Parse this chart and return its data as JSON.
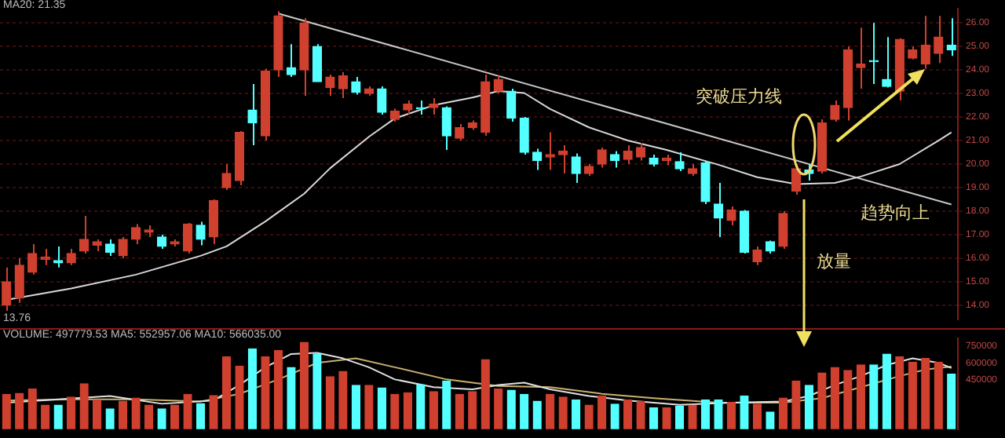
{
  "chart_data": [
    {
      "type": "candlestick",
      "title": "MA20: 21.35",
      "categories": [
        null,
        null,
        null,
        null,
        null,
        null,
        null,
        null,
        null,
        null,
        null,
        null,
        null,
        null,
        null,
        null,
        null,
        null,
        null,
        null,
        null,
        null,
        null,
        null,
        null,
        null,
        null,
        null,
        null,
        null,
        null,
        null,
        null,
        null,
        null,
        null,
        null,
        null,
        null,
        null,
        null,
        null,
        null,
        null,
        null,
        null,
        null,
        null,
        null,
        null,
        null,
        null,
        null,
        null,
        null,
        null,
        null,
        null,
        null,
        null,
        null,
        null,
        null,
        null,
        null,
        null,
        null,
        null,
        null,
        null,
        null,
        null,
        null,
        null
      ],
      "ohlc": [
        [
          14.0,
          15.6,
          13.76,
          15.0
        ],
        [
          14.3,
          16.0,
          14.1,
          15.7
        ],
        [
          15.4,
          16.6,
          15.3,
          16.2
        ],
        [
          15.95,
          16.4,
          15.7,
          16.05
        ],
        [
          15.9,
          16.5,
          15.6,
          15.8
        ],
        [
          15.8,
          16.4,
          15.7,
          16.2
        ],
        [
          16.3,
          17.8,
          16.2,
          16.8
        ],
        [
          16.55,
          16.8,
          16.3,
          16.7
        ],
        [
          16.6,
          16.8,
          16.1,
          16.25
        ],
        [
          16.1,
          16.9,
          16.0,
          16.8
        ],
        [
          16.8,
          17.45,
          16.6,
          17.3
        ],
        [
          17.1,
          17.4,
          16.9,
          17.2
        ],
        [
          16.9,
          17.0,
          16.4,
          16.5
        ],
        [
          16.6,
          16.8,
          16.5,
          16.7
        ],
        [
          16.3,
          17.5,
          16.2,
          17.45
        ],
        [
          17.4,
          17.55,
          16.55,
          16.8
        ],
        [
          16.9,
          18.5,
          16.6,
          18.45
        ],
        [
          19.0,
          20.0,
          18.9,
          19.6
        ],
        [
          19.3,
          21.4,
          19.1,
          21.35
        ],
        [
          22.3,
          23.4,
          20.8,
          21.75
        ],
        [
          21.2,
          24.05,
          21.0,
          23.95
        ],
        [
          24.0,
          26.5,
          23.7,
          26.3
        ],
        [
          24.1,
          25.1,
          23.7,
          23.8
        ],
        [
          24.0,
          26.2,
          22.9,
          26.0
        ],
        [
          25.0,
          25.1,
          23.5,
          23.5
        ],
        [
          23.25,
          23.8,
          22.9,
          23.7
        ],
        [
          23.2,
          23.9,
          22.8,
          23.75
        ],
        [
          23.5,
          23.7,
          22.95,
          23.05
        ],
        [
          23.0,
          23.3,
          22.9,
          23.2
        ],
        [
          23.2,
          23.3,
          22.1,
          22.2
        ],
        [
          21.9,
          22.35,
          21.8,
          22.25
        ],
        [
          22.3,
          22.7,
          22.1,
          22.55
        ],
        [
          22.4,
          22.7,
          22.1,
          22.35
        ],
        [
          22.4,
          22.8,
          22.1,
          22.55
        ],
        [
          22.4,
          22.45,
          20.6,
          21.2
        ],
        [
          21.1,
          21.7,
          21.0,
          21.55
        ],
        [
          21.55,
          21.85,
          21.45,
          21.75
        ],
        [
          21.35,
          23.8,
          21.2,
          23.5
        ],
        [
          23.1,
          23.75,
          23.0,
          23.6
        ],
        [
          23.1,
          23.2,
          21.8,
          21.95
        ],
        [
          21.95,
          22.0,
          20.4,
          20.5
        ],
        [
          20.5,
          20.65,
          19.75,
          20.15
        ],
        [
          20.3,
          21.35,
          19.75,
          20.4
        ],
        [
          20.4,
          20.8,
          19.6,
          20.55
        ],
        [
          20.3,
          20.45,
          19.2,
          19.6
        ],
        [
          19.6,
          20.0,
          19.5,
          19.9
        ],
        [
          20.0,
          20.7,
          19.85,
          20.6
        ],
        [
          20.4,
          20.55,
          19.85,
          20.15
        ],
        [
          20.2,
          20.8,
          20.0,
          20.55
        ],
        [
          20.3,
          20.9,
          20.15,
          20.7
        ],
        [
          20.25,
          20.4,
          19.9,
          20.0
        ],
        [
          20.15,
          20.4,
          19.95,
          20.25
        ],
        [
          20.1,
          20.5,
          19.7,
          19.8
        ],
        [
          19.6,
          20.0,
          19.5,
          19.8
        ],
        [
          20.05,
          20.1,
          18.3,
          18.4
        ],
        [
          18.3,
          19.2,
          16.9,
          17.7
        ],
        [
          17.6,
          18.2,
          17.4,
          18.05
        ],
        [
          18.0,
          18.05,
          16.2,
          16.25
        ],
        [
          15.85,
          16.5,
          15.7,
          16.35
        ],
        [
          16.7,
          16.75,
          16.2,
          16.3
        ],
        [
          16.5,
          18.0,
          16.4,
          17.9
        ],
        [
          18.85,
          20.0,
          18.7,
          19.8
        ],
        [
          19.75,
          20.0,
          19.3,
          19.6
        ],
        [
          19.7,
          21.9,
          19.6,
          21.75
        ],
        [
          21.9,
          22.7,
          21.8,
          22.5
        ],
        [
          22.4,
          25.0,
          21.85,
          24.85
        ],
        [
          24.1,
          25.8,
          23.2,
          24.25
        ],
        [
          24.4,
          26.0,
          23.4,
          24.35
        ],
        [
          23.6,
          25.4,
          23.25,
          23.3
        ],
        [
          23.1,
          25.35,
          22.7,
          25.3
        ],
        [
          24.5,
          25.0,
          24.45,
          24.85
        ],
        [
          24.25,
          26.3,
          24.05,
          25.05
        ],
        [
          24.7,
          26.3,
          24.3,
          25.4
        ],
        [
          25.05,
          26.2,
          24.6,
          24.85
        ]
      ],
      "colors": [
        "#d0402f",
        "#d0402f",
        "#d0402f",
        "#d0402f",
        "#54ffff",
        "#d0402f",
        "#d0402f",
        "#d0402f",
        "#54ffff",
        "#d0402f",
        "#d0402f",
        "#d0402f",
        "#54ffff",
        "#d0402f",
        "#d0402f",
        "#54ffff",
        "#d0402f",
        "#d0402f",
        "#d0402f",
        "#54ffff",
        "#d0402f",
        "#d0402f",
        "#54ffff",
        "#d0402f",
        "#54ffff",
        "#d0402f",
        "#d0402f",
        "#54ffff",
        "#d0402f",
        "#54ffff",
        "#d0402f",
        "#d0402f",
        "#54ffff",
        "#d0402f",
        "#54ffff",
        "#d0402f",
        "#d0402f",
        "#d0402f",
        "#d0402f",
        "#54ffff",
        "#54ffff",
        "#54ffff",
        "#d0402f",
        "#d0402f",
        "#54ffff",
        "#d0402f",
        "#d0402f",
        "#54ffff",
        "#d0402f",
        "#d0402f",
        "#54ffff",
        "#d0402f",
        "#54ffff",
        "#d0402f",
        "#54ffff",
        "#54ffff",
        "#d0402f",
        "#54ffff",
        "#d0402f",
        "#54ffff",
        "#d0402f",
        "#d0402f",
        "#54ffff",
        "#d0402f",
        "#d0402f",
        "#d0402f",
        "#d0402f",
        "#54ffff",
        "#54ffff",
        "#d0402f",
        "#d0402f",
        "#d0402f",
        "#d0402f",
        "#54ffff"
      ],
      "series": [
        {
          "type": "line",
          "color": "#d8d8d8",
          "values": [
            14.23,
            null,
            null,
            null,
            null,
            14.71,
            null,
            null,
            null,
            null,
            15.3,
            null,
            null,
            null,
            null,
            16.1,
            null,
            16.5,
            null,
            null,
            17.56,
            null,
            null,
            18.74,
            null,
            19.82,
            null,
            null,
            21.16,
            null,
            21.94,
            null,
            null,
            22.5,
            null,
            null,
            22.83,
            null,
            23.1,
            null,
            23.02,
            null,
            22.34,
            null,
            null,
            21.56,
            null,
            null,
            21.0,
            null,
            null,
            20.6,
            null,
            null,
            null,
            19.97,
            null,
            null,
            19.44,
            null,
            null,
            19.15,
            null,
            null,
            19.2,
            null,
            19.47,
            null,
            null,
            20.0,
            null,
            null,
            21.0,
            21.35
          ]
        },
        {
          "type": "line",
          "color": "#c8c8c8",
          "values": [
            null,
            null,
            null,
            null,
            null,
            null,
            null,
            null,
            null,
            null,
            null,
            null,
            null,
            null,
            null,
            null,
            null,
            null,
            null,
            null,
            null,
            26.4,
            null,
            null,
            null,
            null,
            null,
            null,
            null,
            null,
            null,
            null,
            null,
            null,
            null,
            null,
            null,
            null,
            null,
            null,
            null,
            null,
            null,
            null,
            null,
            null,
            null,
            null,
            null,
            null,
            null,
            null,
            null,
            null,
            null,
            null,
            null,
            null,
            null,
            null,
            null,
            null,
            null,
            null,
            null,
            null,
            null,
            null,
            null,
            null,
            null,
            null,
            null,
            18.28
          ]
        }
      ],
      "ylim": [
        13.4,
        26.6
      ],
      "yticks": [
        {
          "value": 14,
          "label": "14.00"
        },
        {
          "value": 15,
          "label": "15.00"
        },
        {
          "value": 16,
          "label": "16.00"
        },
        {
          "value": 17,
          "label": "17.00"
        },
        {
          "value": 18,
          "label": "18.00"
        },
        {
          "value": 19,
          "label": "19.00"
        },
        {
          "value": 20,
          "label": "20.00"
        },
        {
          "value": 21,
          "label": "21.00"
        },
        {
          "value": 22,
          "label": "22.00"
        },
        {
          "value": 23,
          "label": "23.00"
        },
        {
          "value": 24,
          "label": "24.00"
        },
        {
          "value": 25,
          "label": "25.00"
        },
        {
          "value": 26,
          "label": "26.00"
        }
      ],
      "grid": "y",
      "tick_labels": "y",
      "annotations": [
        "突破压力线",
        "趋势向上",
        "放量",
        {
          "text": "13.76",
          "y": 13.76
        }
      ]
    },
    {
      "type": "bar",
      "title": "VOLUME: 497779.53  MA5: 552957.06  MA10: 566035.00",
      "categories": [
        null,
        null,
        null,
        null,
        null,
        null,
        null,
        null,
        null,
        null,
        null,
        null,
        null,
        null,
        null,
        null,
        null,
        null,
        null,
        null,
        null,
        null,
        null,
        null,
        null,
        null,
        null,
        null,
        null,
        null,
        null,
        null,
        null,
        null,
        null,
        null,
        null,
        null,
        null,
        null,
        null,
        null,
        null,
        null,
        null,
        null,
        null,
        null,
        null,
        null,
        null,
        null,
        null,
        null,
        null,
        null,
        null,
        null,
        null,
        null,
        null,
        null,
        null,
        null,
        null,
        null,
        null,
        null,
        null,
        null,
        null,
        null,
        null,
        null
      ],
      "values": [
        315000,
        324000,
        363000,
        218000,
        218000,
        290000,
        411000,
        266000,
        184000,
        252000,
        281000,
        218000,
        184000,
        218000,
        315000,
        232000,
        305000,
        653000,
        571000,
        726000,
        653000,
        711000,
        557000,
        784000,
        678000,
        474000,
        523000,
        397000,
        397000,
        373000,
        315000,
        329000,
        402000,
        339000,
        436000,
        315000,
        339000,
        629000,
        363000,
        353000,
        315000,
        252000,
        315000,
        290000,
        266000,
        218000,
        300000,
        227000,
        266000,
        252000,
        194000,
        194000,
        208000,
        218000,
        266000,
        266000,
        242000,
        300000,
        227000,
        155000,
        281000,
        436000,
        397000,
        508000,
        557000,
        532000,
        581000,
        581000,
        678000,
        653000,
        605000,
        639000,
        605000,
        497779.53
      ],
      "colors": [
        "#d0402f",
        "#d0402f",
        "#d0402f",
        "#d0402f",
        "#54ffff",
        "#d0402f",
        "#d0402f",
        "#d0402f",
        "#54ffff",
        "#d0402f",
        "#d0402f",
        "#d0402f",
        "#54ffff",
        "#d0402f",
        "#d0402f",
        "#54ffff",
        "#d0402f",
        "#d0402f",
        "#d0402f",
        "#54ffff",
        "#d0402f",
        "#d0402f",
        "#54ffff",
        "#d0402f",
        "#54ffff",
        "#d0402f",
        "#d0402f",
        "#54ffff",
        "#d0402f",
        "#54ffff",
        "#d0402f",
        "#d0402f",
        "#54ffff",
        "#d0402f",
        "#54ffff",
        "#d0402f",
        "#d0402f",
        "#d0402f",
        "#d0402f",
        "#54ffff",
        "#54ffff",
        "#54ffff",
        "#d0402f",
        "#d0402f",
        "#54ffff",
        "#d0402f",
        "#d0402f",
        "#54ffff",
        "#d0402f",
        "#d0402f",
        "#54ffff",
        "#d0402f",
        "#54ffff",
        "#d0402f",
        "#54ffff",
        "#54ffff",
        "#d0402f",
        "#54ffff",
        "#d0402f",
        "#54ffff",
        "#d0402f",
        "#d0402f",
        "#54ffff",
        "#d0402f",
        "#d0402f",
        "#d0402f",
        "#d0402f",
        "#54ffff",
        "#54ffff",
        "#d0402f",
        "#d0402f",
        "#d0402f",
        "#d0402f",
        "#54ffff"
      ],
      "series": [
        {
          "type": "line",
          "color": "#e0e0e0",
          "values": [
            240000,
            null,
            null,
            null,
            270000,
            null,
            null,
            null,
            300000,
            null,
            null,
            null,
            230000,
            null,
            null,
            null,
            260000,
            null,
            400000,
            null,
            560000,
            null,
            680000,
            null,
            690000,
            null,
            640000,
            null,
            560000,
            null,
            450000,
            null,
            null,
            380000,
            null,
            null,
            360000,
            null,
            400000,
            null,
            420000,
            null,
            360000,
            null,
            null,
            300000,
            null,
            null,
            260000,
            null,
            null,
            null,
            220000,
            null,
            null,
            null,
            240000,
            null,
            null,
            null,
            250000,
            null,
            300000,
            null,
            400000,
            null,
            480000,
            null,
            580000,
            null,
            640000,
            null,
            600000,
            552957.06
          ]
        },
        {
          "type": "line",
          "color": "#c8b070",
          "values": [
            260000,
            null,
            null,
            null,
            null,
            270000,
            null,
            null,
            null,
            null,
            270000,
            null,
            null,
            null,
            null,
            250000,
            null,
            null,
            320000,
            null,
            null,
            450000,
            null,
            null,
            600000,
            null,
            null,
            640000,
            null,
            null,
            560000,
            null,
            null,
            null,
            450000,
            null,
            null,
            null,
            390000,
            null,
            null,
            null,
            380000,
            null,
            null,
            null,
            320000,
            null,
            null,
            null,
            280000,
            null,
            null,
            null,
            null,
            240000,
            null,
            null,
            null,
            null,
            240000,
            null,
            null,
            280000,
            null,
            null,
            380000,
            null,
            null,
            480000,
            null,
            540000,
            null,
            566035.0
          ]
        }
      ],
      "ylim": [
        0,
        820000
      ],
      "yticks": [
        450000,
        600000,
        750000
      ],
      "tick_labels": "y"
    }
  ]
}
